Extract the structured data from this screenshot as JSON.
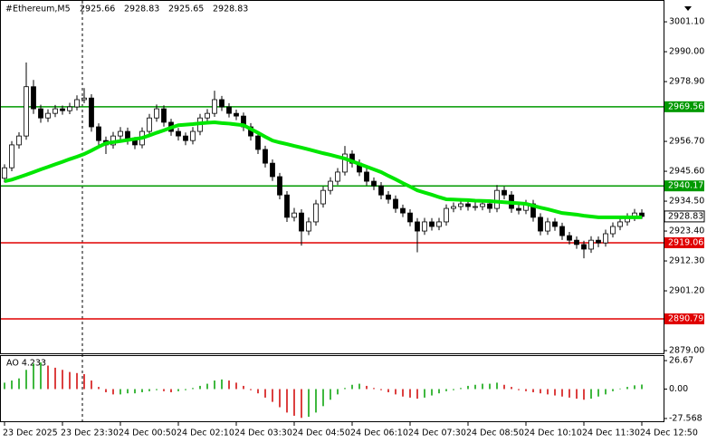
{
  "chart_data": {
    "type": "candlestick",
    "title": "#Ethereum,M5",
    "quote": [
      2925.66,
      2928.83,
      2925.65,
      2928.83
    ],
    "categories": [
      "23 Dec 2025",
      null,
      null,
      null,
      null,
      null,
      null,
      null,
      "23 Dec 23:30",
      null,
      null,
      null,
      null,
      null,
      null,
      null,
      "24 Dec 00:50",
      null,
      null,
      null,
      null,
      null,
      null,
      null,
      "24 Dec 02:10",
      null,
      null,
      null,
      null,
      null,
      null,
      null,
      "24 Dec 03:30",
      null,
      null,
      null,
      null,
      null,
      null,
      null,
      "24 Dec 04:50",
      null,
      null,
      null,
      null,
      null,
      null,
      null,
      "24 Dec 06:10",
      null,
      null,
      null,
      null,
      null,
      null,
      null,
      "24 Dec 07:30",
      null,
      null,
      null,
      null,
      null,
      null,
      null,
      "24 Dec 08:50",
      null,
      null,
      null,
      null,
      null,
      null,
      null,
      "24 Dec 10:10",
      null,
      null,
      null,
      null,
      null,
      null,
      null,
      "24 Dec 11:30",
      null,
      null,
      null,
      null,
      null,
      null,
      null,
      "24 Dec 12:50"
    ],
    "ohlc": [
      [
        2943.0,
        2948.2,
        2941.5,
        2946.9
      ],
      [
        2946.9,
        2956.8,
        2945.6,
        2955.4
      ],
      [
        2955.4,
        2960.1,
        2954.0,
        2958.7
      ],
      [
        2958.7,
        2986.0,
        2957.3,
        2977.0
      ],
      [
        2977.0,
        2979.5,
        2966.9,
        2968.8
      ],
      [
        2968.8,
        2970.3,
        2963.6,
        2965.4
      ],
      [
        2965.4,
        2968.6,
        2963.9,
        2967.1
      ],
      [
        2967.1,
        2970.2,
        2965.7,
        2968.8
      ],
      [
        2968.8,
        2970.0,
        2966.6,
        2968.1
      ],
      [
        2968.1,
        2971.0,
        2966.8,
        2969.5
      ],
      [
        2969.5,
        2973.8,
        2968.2,
        2972.2
      ],
      [
        2972.2,
        2976.5,
        2970.9,
        2972.8
      ],
      [
        2972.8,
        2974.2,
        2960.3,
        2962.1
      ],
      [
        2962.1,
        2963.4,
        2955.2,
        2957.0
      ],
      [
        2957.0,
        2958.5,
        2952.0,
        2955.4
      ],
      [
        2955.4,
        2960.2,
        2954.0,
        2958.7
      ],
      [
        2958.7,
        2962.0,
        2957.3,
        2960.4
      ],
      [
        2960.4,
        2961.8,
        2955.5,
        2957.0
      ],
      [
        2957.0,
        2958.3,
        2953.8,
        2955.4
      ],
      [
        2955.4,
        2961.9,
        2954.1,
        2960.4
      ],
      [
        2960.4,
        2966.9,
        2959.0,
        2965.4
      ],
      [
        2965.4,
        2970.4,
        2964.0,
        2968.8
      ],
      [
        2968.8,
        2970.1,
        2962.2,
        2963.8
      ],
      [
        2963.8,
        2965.1,
        2958.8,
        2960.4
      ],
      [
        2960.4,
        2961.7,
        2957.0,
        2958.7
      ],
      [
        2958.7,
        2960.0,
        2955.3,
        2957.0
      ],
      [
        2957.0,
        2962.0,
        2955.6,
        2960.4
      ],
      [
        2960.4,
        2966.9,
        2959.0,
        2965.4
      ],
      [
        2965.4,
        2968.7,
        2964.0,
        2967.1
      ],
      [
        2967.1,
        2975.5,
        2965.8,
        2972.2
      ],
      [
        2972.2,
        2973.6,
        2968.0,
        2969.5
      ],
      [
        2969.5,
        2970.9,
        2965.6,
        2967.1
      ],
      [
        2967.1,
        2968.5,
        2964.6,
        2966.1
      ],
      [
        2966.1,
        2967.4,
        2960.5,
        2962.1
      ],
      [
        2962.1,
        2963.5,
        2957.0,
        2958.7
      ],
      [
        2958.7,
        2960.0,
        2952.0,
        2953.7
      ],
      [
        2953.7,
        2955.1,
        2947.0,
        2948.6
      ],
      [
        2948.6,
        2950.0,
        2942.0,
        2943.6
      ],
      [
        2943.6,
        2945.0,
        2935.2,
        2936.8
      ],
      [
        2936.8,
        2938.2,
        2926.8,
        2928.5
      ],
      [
        2928.5,
        2932.0,
        2927.0,
        2930.1
      ],
      [
        2930.1,
        2931.5,
        2918.0,
        2923.4
      ],
      [
        2923.4,
        2928.4,
        2921.9,
        2926.8
      ],
      [
        2926.8,
        2935.0,
        2925.4,
        2933.5
      ],
      [
        2933.5,
        2940.0,
        2932.1,
        2938.5
      ],
      [
        2938.5,
        2943.4,
        2937.0,
        2941.9
      ],
      [
        2941.9,
        2946.8,
        2940.5,
        2945.3
      ],
      [
        2945.3,
        2955.0,
        2944.0,
        2952.0
      ],
      [
        2952.0,
        2953.4,
        2947.0,
        2948.6
      ],
      [
        2948.6,
        2950.0,
        2943.8,
        2945.3
      ],
      [
        2945.3,
        2946.7,
        2940.3,
        2941.9
      ],
      [
        2941.9,
        2943.3,
        2938.6,
        2940.2
      ],
      [
        2940.2,
        2941.6,
        2935.2,
        2936.8
      ],
      [
        2936.8,
        2938.2,
        2933.6,
        2935.2
      ],
      [
        2935.2,
        2936.6,
        2930.2,
        2931.8
      ],
      [
        2931.8,
        2933.2,
        2928.6,
        2930.1
      ],
      [
        2930.1,
        2931.5,
        2925.2,
        2926.8
      ],
      [
        2926.8,
        2928.2,
        2915.5,
        2923.4
      ],
      [
        2923.4,
        2928.3,
        2922.0,
        2926.8
      ],
      [
        2926.8,
        2928.2,
        2923.6,
        2925.1
      ],
      [
        2925.1,
        2928.3,
        2923.7,
        2926.8
      ],
      [
        2926.8,
        2933.3,
        2925.4,
        2931.8
      ],
      [
        2931.8,
        2934.0,
        2930.4,
        2932.5
      ],
      [
        2932.5,
        2935.0,
        2931.1,
        2933.5
      ],
      [
        2933.5,
        2935.0,
        2931.0,
        2932.5
      ],
      [
        2932.5,
        2934.0,
        2931.0,
        2932.5
      ],
      [
        2932.5,
        2935.0,
        2931.1,
        2933.5
      ],
      [
        2933.5,
        2935.0,
        2930.2,
        2931.8
      ],
      [
        2931.8,
        2940.5,
        2930.4,
        2938.5
      ],
      [
        2938.5,
        2940.0,
        2935.2,
        2936.8
      ],
      [
        2936.8,
        2938.2,
        2930.2,
        2931.8
      ],
      [
        2931.8,
        2933.2,
        2929.6,
        2931.1
      ],
      [
        2931.1,
        2935.0,
        2929.7,
        2933.5
      ],
      [
        2933.5,
        2935.0,
        2926.9,
        2928.5
      ],
      [
        2928.5,
        2930.0,
        2921.8,
        2923.4
      ],
      [
        2923.4,
        2928.3,
        2922.0,
        2926.8
      ],
      [
        2926.8,
        2928.2,
        2923.5,
        2925.1
      ],
      [
        2925.1,
        2926.5,
        2920.1,
        2921.7
      ],
      [
        2921.7,
        2923.1,
        2918.4,
        2920.0
      ],
      [
        2920.0,
        2921.4,
        2916.8,
        2918.4
      ],
      [
        2918.4,
        2919.8,
        2913.3,
        2916.7
      ],
      [
        2916.7,
        2921.5,
        2915.3,
        2920.0
      ],
      [
        2920.0,
        2921.4,
        2917.4,
        2919.0
      ],
      [
        2919.0,
        2923.9,
        2917.6,
        2922.4
      ],
      [
        2922.4,
        2926.6,
        2921.0,
        2925.1
      ],
      [
        2925.1,
        2928.3,
        2923.7,
        2926.8
      ],
      [
        2926.8,
        2930.0,
        2925.4,
        2928.5
      ],
      [
        2928.5,
        2931.6,
        2927.1,
        2930.1
      ],
      [
        2930.1,
        2931.5,
        2927.9,
        2928.83
      ]
    ],
    "ma": {
      "color": "#00e600",
      "values": [
        2941.9,
        2942.5,
        2943.4,
        2944.3,
        2945.3,
        2946.3,
        2947.2,
        2948.2,
        2949.1,
        2950.1,
        2951.0,
        2952.0,
        2953.3,
        2954.7,
        2956.0,
        2956.4,
        2956.8,
        2957.2,
        2957.6,
        2958.0,
        2958.9,
        2959.9,
        2960.8,
        2961.8,
        2962.7,
        2962.9,
        2963.1,
        2963.4,
        2963.6,
        2963.8,
        2963.5,
        2963.3,
        2963.0,
        2962.7,
        2961.3,
        2959.9,
        2958.4,
        2957.0,
        2956.3,
        2955.7,
        2955.0,
        2954.4,
        2953.7,
        2953.0,
        2952.3,
        2951.7,
        2951.0,
        2950.3,
        2949.3,
        2948.3,
        2947.3,
        2946.3,
        2945.3,
        2943.9,
        2942.6,
        2941.2,
        2939.9,
        2938.5,
        2937.7,
        2936.9,
        2936.0,
        2935.2,
        2935.1,
        2935.0,
        2934.9,
        2934.7,
        2934.6,
        2934.5,
        2934.3,
        2934.1,
        2933.9,
        2933.7,
        2933.5,
        2932.8,
        2932.1,
        2931.5,
        2930.8,
        2930.1,
        2929.8,
        2929.5,
        2929.1,
        2928.8,
        2928.5,
        2928.5,
        2928.5,
        2928.5,
        2928.5,
        2928.5,
        2928.5
      ]
    },
    "ylim": [
      2878.0,
      3009.2
    ],
    "yticks": [
      {
        "value": 3001.1,
        "label": "3001.10"
      },
      {
        "value": 2990,
        "label": "2990.00"
      },
      {
        "value": 2978.9,
        "label": "2978.90"
      },
      {
        "value": 2956.7,
        "label": "2956.70"
      },
      {
        "value": 2945.6,
        "label": "2945.60"
      },
      {
        "value": 2934.5,
        "label": "2934.50"
      },
      {
        "value": 2923.4,
        "label": "2923.40"
      },
      {
        "value": 2912.3,
        "label": "2912.30"
      },
      {
        "value": 2901.2,
        "label": "2901.20"
      },
      {
        "value": 2879,
        "label": "2879.00"
      }
    ],
    "levels": [
      {
        "value": 2969.56,
        "color": "#009900"
      },
      {
        "value": 2940.17,
        "color": "#009900"
      },
      {
        "value": 2919.06,
        "color": "#e00000"
      },
      {
        "value": 2890.79,
        "color": "#e00000"
      }
    ],
    "ao": {
      "label": "AO 4.233",
      "up_color": "#00a000",
      "down_color": "#d00000",
      "ylim": [
        -31.0,
        31.8
      ],
      "yticks": [
        26.67,
        {
          "value": 0,
          "label": "0.00"
        },
        -27.568
      ],
      "values": [
        6,
        8,
        10,
        18,
        24,
        25,
        22,
        20,
        18,
        16,
        15,
        14,
        8,
        2,
        -3,
        -5,
        -5,
        -4,
        -4,
        -3,
        -2,
        -1,
        -2,
        -3,
        -2,
        -1,
        1,
        3,
        5,
        8,
        9,
        8,
        6,
        3,
        -1,
        -4,
        -8,
        -12,
        -17,
        -22,
        -25,
        -27,
        -26,
        -22,
        -16,
        -10,
        -5,
        1,
        4,
        5,
        3,
        1,
        -1,
        -3,
        -5,
        -7,
        -8,
        -9,
        -8,
        -6,
        -4,
        -2,
        -1,
        1,
        3,
        4,
        5,
        5,
        6,
        4,
        2,
        -1,
        -2,
        -3,
        -4,
        -5,
        -6,
        -7,
        -8,
        -9,
        -10,
        -9,
        -7,
        -5,
        -2,
        0.5,
        2,
        3.5,
        4.233
      ]
    }
  }
}
